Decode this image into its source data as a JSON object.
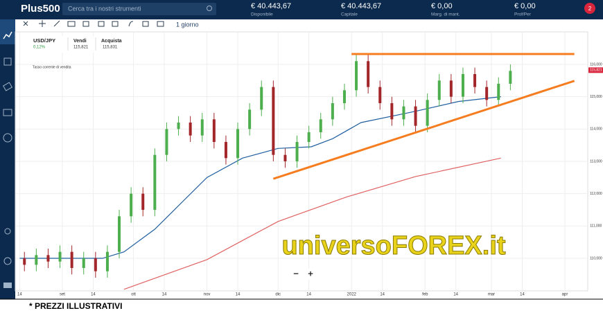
{
  "header": {
    "logo": "Plus500",
    "search": "Cerca tra i nostri strumenti",
    "stats": [
      {
        "value": "€ 40.443,67",
        "label": "Disponibile"
      },
      {
        "value": "€ 40.443,67",
        "label": "Capitale"
      },
      {
        "value": "€ 0,00",
        "label": "Marg. di mant."
      },
      {
        "value": "€ 0,00",
        "label": "Prof/Per"
      }
    ],
    "badge": "2"
  },
  "toolbar": {
    "period": "1 giorno"
  },
  "instrument": {
    "name": "USD/JPY",
    "change": "0,12%",
    "sell_label": "Vendi",
    "sell": "115,821",
    "buy_label": "Acquista",
    "buy": "115,831",
    "note": "Tasso corrente di vendita"
  },
  "watermark": "universoFOREX.it",
  "zoom": [
    "−",
    "+"
  ],
  "footer": "* PREZZI ILLUSTRATIVI",
  "chart_data": {
    "type": "candlestick",
    "x": [
      10,
      15,
      20,
      25,
      30,
      35,
      40,
      45,
      50,
      55,
      60,
      65,
      70,
      75,
      80,
      85,
      90,
      95,
      100,
      105,
      110,
      115,
      120,
      125,
      130,
      135,
      140,
      145,
      150,
      155,
      160,
      165,
      170,
      175,
      180,
      185,
      190,
      195,
      200,
      205,
      210,
      215,
      220
    ],
    "open": [
      110.2,
      110.0,
      109.8,
      110.1,
      109.9,
      110.2,
      109.7,
      110.0,
      109.6,
      110.2,
      111.3,
      112.0,
      111.5,
      113.2,
      114.0,
      114.2,
      113.8,
      114.3,
      113.6,
      113.1,
      114.0,
      114.6,
      115.3,
      113.2,
      113.0,
      113.6,
      113.9,
      114.3,
      114.8,
      115.2,
      116.1,
      115.3,
      114.8,
      114.3,
      114.7,
      114.1,
      114.9,
      115.5,
      115.0,
      115.7,
      115.3,
      114.9,
      115.4
    ],
    "high": [
      110.4,
      110.2,
      110.3,
      110.3,
      110.4,
      110.4,
      110.2,
      110.2,
      110.4,
      111.5,
      112.2,
      112.2,
      113.4,
      114.2,
      114.4,
      114.4,
      114.5,
      114.5,
      113.8,
      114.2,
      114.8,
      115.5,
      115.5,
      113.4,
      113.8,
      114.1,
      114.5,
      115.0,
      115.4,
      116.3,
      116.3,
      115.5,
      115.0,
      114.9,
      114.9,
      115.1,
      115.7,
      115.7,
      115.9,
      115.9,
      115.5,
      115.6,
      116.0
    ],
    "low": [
      109.8,
      109.6,
      109.6,
      109.7,
      109.7,
      109.5,
      109.5,
      109.4,
      109.4,
      110.0,
      111.1,
      111.3,
      111.3,
      113.0,
      113.8,
      113.6,
      113.6,
      113.4,
      112.9,
      112.9,
      113.8,
      114.4,
      113.0,
      112.8,
      112.8,
      113.4,
      113.7,
      114.1,
      114.6,
      115.0,
      115.1,
      114.6,
      114.1,
      114.1,
      113.9,
      113.9,
      114.7,
      114.8,
      114.8,
      115.1,
      114.7,
      114.7,
      115.2
    ],
    "close": [
      110.0,
      109.8,
      110.1,
      109.9,
      110.2,
      109.7,
      110.0,
      109.6,
      110.2,
      111.3,
      112.0,
      111.5,
      113.2,
      114.0,
      114.2,
      113.8,
      114.3,
      113.6,
      113.1,
      114.0,
      114.6,
      115.3,
      113.2,
      113.0,
      113.6,
      113.9,
      114.3,
      114.8,
      115.2,
      116.1,
      115.3,
      114.8,
      114.3,
      114.7,
      114.1,
      114.9,
      115.5,
      115.0,
      115.7,
      115.3,
      114.9,
      115.4,
      115.8
    ],
    "up_color": "#4cae4c",
    "down_color": "#a3262a",
    "lines": [
      {
        "color": "#1f5fa0",
        "x": [
          13,
          48,
          57,
          70,
          92,
          107,
          122,
          136,
          145,
          157,
          180,
          198,
          216
        ],
        "values": [
          110.0,
          110.0,
          110.2,
          110.9,
          112.5,
          113.1,
          113.4,
          113.45,
          113.7,
          114.2,
          114.55,
          114.85,
          115.0
        ]
      },
      {
        "color": "#e06060",
        "x": [
          57,
          92,
          122,
          151,
          180,
          216
        ],
        "values": [
          109.04,
          109.96,
          111.14,
          111.9,
          112.53,
          113.1
        ]
      }
    ],
    "trendlines": [
      {
        "color": "#f57c1f",
        "x": [
          153,
          247
        ],
        "values": [
          116.32,
          116.32
        ]
      },
      {
        "color": "#f57c1f",
        "x": [
          120,
          247
        ],
        "values": [
          112.46,
          115.49
        ]
      }
    ],
    "xlim": [
      8,
      252
    ],
    "ylim": [
      109,
      117
    ],
    "xticks": [
      {
        "value": 13,
        "label": "14"
      },
      {
        "value": 31,
        "label": "set"
      },
      {
        "value": 44,
        "label": "14"
      },
      {
        "value": 61,
        "label": "ott"
      },
      {
        "value": 74,
        "label": "14"
      },
      {
        "value": 92,
        "label": "nov"
      },
      {
        "value": 105,
        "label": "14"
      },
      {
        "value": 122,
        "label": "dic"
      },
      {
        "value": 135,
        "label": "14"
      },
      {
        "value": 153,
        "label": "2022"
      },
      {
        "value": 166,
        "label": "14"
      },
      {
        "value": 184,
        "label": "feb"
      },
      {
        "value": 197,
        "label": "14"
      },
      {
        "value": 212,
        "label": "mar"
      },
      {
        "value": 225,
        "label": "14"
      },
      {
        "value": 243,
        "label": "apr"
      }
    ],
    "yticks": [
      {
        "value": 110,
        "label": "110,000"
      },
      {
        "value": 111,
        "label": "111,000"
      },
      {
        "value": 112,
        "label": "112,000"
      },
      {
        "value": 113,
        "label": "113,000"
      },
      {
        "value": 114,
        "label": "114,000"
      },
      {
        "value": 115,
        "label": "115,000"
      },
      {
        "value": 116,
        "label": "116,000"
      }
    ],
    "last_price": {
      "value": 115.821,
      "label": "115,821"
    },
    "grid": true
  }
}
